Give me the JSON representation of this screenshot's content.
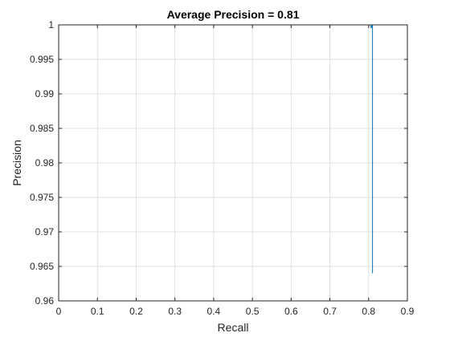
{
  "chart_data": {
    "type": "line",
    "title": "Average Precision = 0.81",
    "xlabel": "Recall",
    "ylabel": "Precision",
    "xlim": [
      0,
      0.9
    ],
    "ylim": [
      0.96,
      1
    ],
    "xticks": [
      "0",
      "0.1",
      "0.2",
      "0.3",
      "0.4",
      "0.5",
      "0.6",
      "0.7",
      "0.8",
      "0.9"
    ],
    "yticks": [
      "0.96",
      "0.965",
      "0.97",
      "0.975",
      "0.98",
      "0.985",
      "0.99",
      "0.995",
      "1"
    ],
    "grid": true,
    "series": [
      {
        "x": [
          0,
          0.005,
          0.1,
          0.2,
          0.3,
          0.4,
          0.5,
          0.6,
          0.7,
          0.8,
          0.806,
          0.806,
          0.81,
          0.81
        ],
        "y": [
          1,
          1,
          1,
          1,
          1,
          1,
          1,
          1,
          1,
          1,
          1,
          0.9995,
          1,
          0.964
        ],
        "color": "#0072BD"
      }
    ]
  }
}
